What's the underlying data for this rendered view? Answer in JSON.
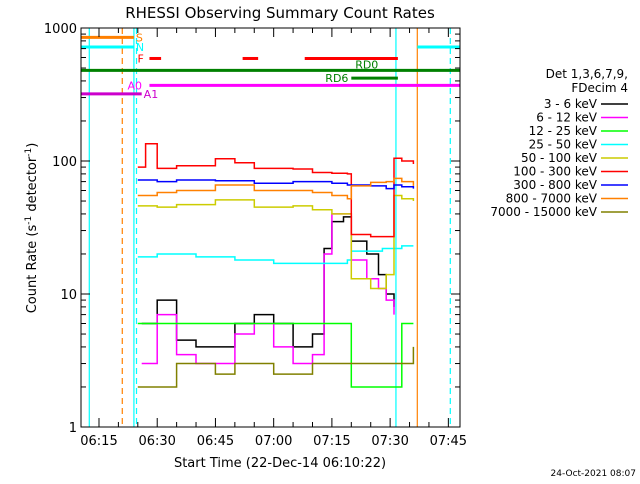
{
  "chart_data": {
    "type": "line",
    "title": "RHESSI Observing Summary Count Rates",
    "xlabel": "Start Time (22-Dec-14 06:10:22)",
    "ylabel": "Count Rate (s⁻¹ detector⁻¹)",
    "ylabel_parts": {
      "main": "Count Rate (s",
      "exp1": "-1",
      "mid": " detector",
      "exp2": "-1",
      "end": ")"
    },
    "yscale": "log",
    "ylim": [
      1,
      1000
    ],
    "xlim": [
      "06:10:22",
      "07:48:00"
    ],
    "x_ticks": [
      "06:15",
      "06:30",
      "06:45",
      "07:00",
      "07:15",
      "07:30",
      "07:45"
    ],
    "y_ticks": [
      "1",
      "10",
      "100",
      "1000"
    ],
    "legend_title": [
      "Det 1,3,6,7,9,",
      "FDecim 4"
    ],
    "legend_position": "right",
    "footer_date": "24-Oct-2021 08:07",
    "colors": {
      "3 - 6 keV": "#000000",
      "6 - 12 keV": "#ff00ff",
      "12 - 25 keV": "#00ff00",
      "25 - 50 keV": "#00ffff",
      "50 - 100 keV": "#cccc00",
      "100 - 300 keV": "#ff0000",
      "300 - 800 keV": "#0000ff",
      "800 - 7000 keV": "#ff8000",
      "7000 - 15000 keV": "#808000"
    },
    "series": [
      {
        "name": "3 - 6 keV",
        "color": "#000000",
        "x": [
          "06:26",
          "06:30",
          "06:35",
          "06:40",
          "06:45",
          "06:50",
          "06:55",
          "07:00",
          "07:05",
          "07:10",
          "07:13",
          "07:15",
          "07:18",
          "07:20",
          "07:24",
          "07:27",
          "07:29",
          "07:31"
        ],
        "values": [
          6,
          9,
          4.5,
          4,
          4,
          6,
          7,
          6,
          4,
          5,
          22,
          35,
          38,
          25,
          20,
          14,
          10,
          8
        ]
      },
      {
        "name": "6 - 12 keV",
        "color": "#ff00ff",
        "x": [
          "06:26",
          "06:30",
          "06:35",
          "06:40",
          "06:45",
          "06:50",
          "06:55",
          "07:00",
          "07:05",
          "07:10",
          "07:13",
          "07:15",
          "07:18",
          "07:20",
          "07:24",
          "07:27",
          "07:29",
          "07:31"
        ],
        "values": [
          3,
          7,
          3.5,
          3,
          3,
          5,
          6,
          4,
          3,
          3.5,
          20,
          40,
          40,
          18,
          13,
          11,
          9,
          7
        ]
      },
      {
        "name": "12 - 25 keV",
        "color": "#00ff00",
        "x": [
          "06:25",
          "06:30",
          "06:40",
          "06:50",
          "07:00",
          "07:10",
          "07:19",
          "07:20",
          "07:27",
          "07:33",
          "07:36"
        ],
        "values": [
          6,
          6,
          6,
          6,
          6,
          6,
          6,
          2,
          2,
          6,
          6
        ]
      },
      {
        "name": "25 - 50 keV",
        "color": "#00ffff",
        "x": [
          "06:25",
          "06:30",
          "06:40",
          "06:50",
          "07:00",
          "07:10",
          "07:19",
          "07:20",
          "07:28",
          "07:33",
          "07:36"
        ],
        "values": [
          19,
          20,
          19,
          18,
          17,
          17,
          18,
          21,
          22,
          23,
          23
        ]
      },
      {
        "name": "50 - 100 keV",
        "color": "#cccc00",
        "x": [
          "06:25",
          "06:30",
          "06:35",
          "06:45",
          "06:55",
          "07:05",
          "07:10",
          "07:15",
          "07:19",
          "07:20",
          "07:25",
          "07:29",
          "07:31",
          "07:33",
          "07:36"
        ],
        "values": [
          46,
          45,
          47,
          51,
          45,
          46,
          43,
          40,
          40,
          13,
          11,
          14,
          55,
          52,
          50
        ]
      },
      {
        "name": "100 - 300 keV",
        "color": "#ff0000",
        "x": [
          "06:25",
          "06:27",
          "06:30",
          "06:35",
          "06:45",
          "06:50",
          "06:55",
          "07:05",
          "07:10",
          "07:15",
          "07:19",
          "07:20",
          "07:25",
          "07:30",
          "07:31",
          "07:33",
          "07:36"
        ],
        "values": [
          90,
          135,
          88,
          92,
          104,
          97,
          88,
          87,
          82,
          81,
          80,
          28,
          27,
          27,
          105,
          100,
          95
        ]
      },
      {
        "name": "300 - 800 keV",
        "color": "#0000ff",
        "x": [
          "06:25",
          "06:30",
          "06:35",
          "06:45",
          "06:55",
          "07:05",
          "07:10",
          "07:15",
          "07:19",
          "07:20",
          "07:25",
          "07:29",
          "07:31",
          "07:33",
          "07:36"
        ],
        "values": [
          72,
          70,
          72,
          71,
          68,
          70,
          70,
          68,
          66,
          66,
          65,
          62,
          66,
          64,
          62
        ]
      },
      {
        "name": "800 - 7000 keV",
        "color": "#ff8000",
        "x": [
          "06:25",
          "06:30",
          "06:35",
          "06:45",
          "06:55",
          "07:05",
          "07:10",
          "07:15",
          "07:19",
          "07:20",
          "07:25",
          "07:29",
          "07:31",
          "07:33",
          "07:36"
        ],
        "values": [
          55,
          58,
          60,
          66,
          60,
          60,
          58,
          55,
          52,
          65,
          69,
          70,
          74,
          70,
          65
        ]
      },
      {
        "name": "7000 - 15000 keV",
        "color": "#808000",
        "x": [
          "06:25",
          "06:30",
          "06:35",
          "06:40",
          "06:45",
          "06:50",
          "06:55",
          "07:00",
          "07:05",
          "07:10",
          "07:15",
          "07:20",
          "07:25",
          "07:30",
          "07:33",
          "07:36"
        ],
        "values": [
          2,
          2,
          3,
          3,
          2.5,
          3,
          3,
          2.5,
          2.5,
          3,
          3,
          3,
          3,
          3,
          3,
          4
        ]
      }
    ],
    "flag_bars": [
      {
        "label": "S",
        "color": "#ff8000",
        "y": 850,
        "segments": [
          [
            "06:10:22",
            "06:24:00"
          ]
        ]
      },
      {
        "label": "N",
        "color": "#00ffff",
        "y": 720,
        "segments": [
          [
            "06:10:22",
            "06:24:00"
          ],
          [
            "07:37:00",
            "07:48:00"
          ]
        ]
      },
      {
        "label": "F",
        "color": "#ff0000",
        "y": 590,
        "segments": [
          [
            "06:28:00",
            "06:31:00"
          ],
          [
            "06:52:00",
            "06:56:00"
          ],
          [
            "07:08:00",
            "07:32:00"
          ]
        ]
      },
      {
        "label": "RD0",
        "color": "#008000",
        "y": 480,
        "segments": [
          [
            "06:10:22",
            "07:48:00"
          ]
        ]
      },
      {
        "label": "RD6",
        "color": "#008000",
        "y": 420,
        "segments": [
          [
            "07:20:00",
            "07:32:00"
          ]
        ]
      },
      {
        "label": "A0",
        "color": "#ff00ff",
        "y": 370,
        "segments": [
          [
            "06:28:00",
            "07:48:00"
          ]
        ]
      },
      {
        "label": "A1",
        "color": "#cc00cc",
        "y": 320,
        "segments": [
          [
            "06:10:22",
            "06:26:00"
          ]
        ]
      }
    ],
    "vlines": [
      {
        "x": "06:24:00",
        "color": "#00ffff",
        "style": "solid"
      },
      {
        "x": "06:24:40",
        "color": "#00ffff",
        "style": "dashed"
      },
      {
        "x": "06:21:00",
        "color": "#ff8000",
        "style": "dashed"
      },
      {
        "x": "06:12:30",
        "color": "#00ffff",
        "style": "solid"
      },
      {
        "x": "07:31:30",
        "color": "#00ffff",
        "style": "solid"
      },
      {
        "x": "07:37:00",
        "color": "#ff8000",
        "style": "solid"
      },
      {
        "x": "07:45:30",
        "color": "#00ffff",
        "style": "dashed"
      }
    ]
  }
}
